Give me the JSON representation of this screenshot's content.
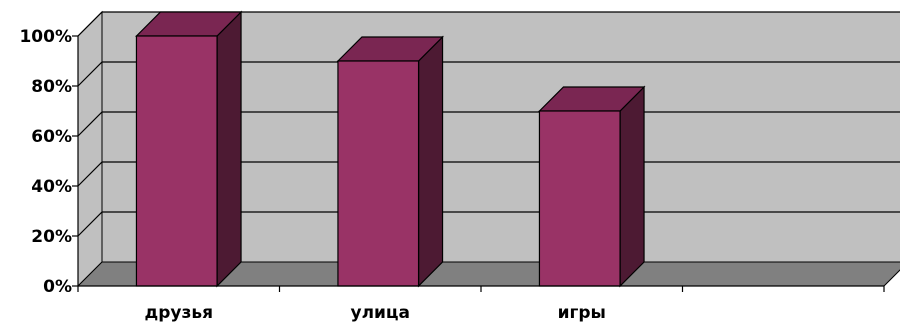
{
  "chart_data": {
    "type": "bar",
    "style": "3d",
    "categories": [
      "друзья",
      "улица",
      "игры",
      ""
    ],
    "values": [
      100,
      90,
      70,
      null
    ],
    "ylim": [
      0,
      100
    ],
    "yticks": [
      "0%",
      "20%",
      "40%",
      "60%",
      "80%",
      "100%"
    ],
    "grid": true,
    "legend": "none",
    "colors": {
      "bar_front": "#993366",
      "bar_top": "#7a2652",
      "bar_side": "#4d1a33",
      "wall": "#c0c0c0",
      "floor": "#808080",
      "gridline": "#000000"
    }
  }
}
